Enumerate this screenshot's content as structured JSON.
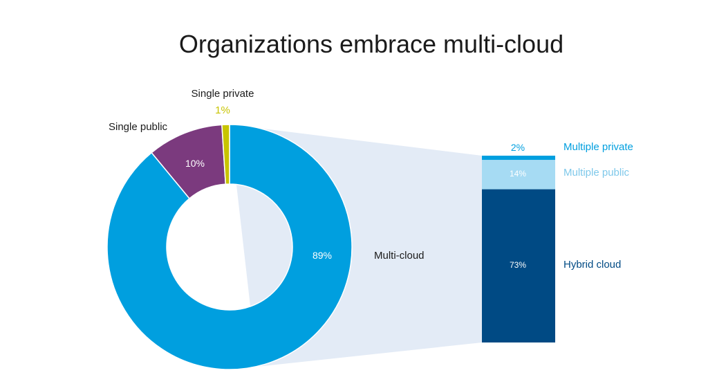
{
  "chart_data": {
    "type": "pie",
    "title": "Organizations embrace multi-cloud",
    "donut": {
      "slices": [
        {
          "label": "Multi-cloud",
          "value": 89,
          "value_label": "89%",
          "color": "#009fdf"
        },
        {
          "label": "Single public",
          "value": 10,
          "value_label": "10%",
          "color": "#7b3a7e"
        },
        {
          "label": "Single private",
          "value": 1,
          "value_label": "1%",
          "color": "#c8c400"
        }
      ]
    },
    "breakdown": {
      "type": "stacked-bar",
      "of": "Multi-cloud",
      "segments": [
        {
          "label": "Hybrid cloud",
          "value": 73,
          "value_label": "73%",
          "color": "#004a84"
        },
        {
          "label": "Multiple public",
          "value": 14,
          "value_label": "14%",
          "color": "#a6dbf3"
        },
        {
          "label": "Multiple private",
          "value": 2,
          "value_label": "2%",
          "color": "#009fdf"
        }
      ]
    },
    "connector_color": "#e3ebf6"
  }
}
